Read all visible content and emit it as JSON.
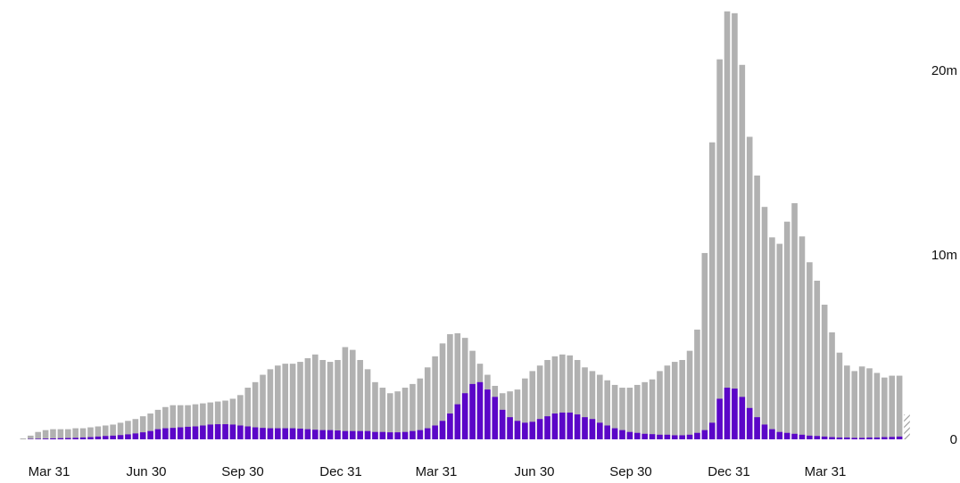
{
  "chart_data": {
    "type": "bar",
    "title": "",
    "xlabel": "",
    "ylabel": "",
    "ylim": [
      0,
      23
    ],
    "unit_scale": "millions",
    "x_tick_labels": [
      "Mar 31",
      "Jun 30",
      "Sep 30",
      "Dec 31",
      "Mar 31",
      "Jun 30",
      "Sep 30",
      "Dec 31",
      "Mar 31"
    ],
    "y_tick_labels": [
      {
        "value": 0,
        "label": "0"
      },
      {
        "value": 10,
        "label": "10m"
      },
      {
        "value": 20,
        "label": "20m"
      }
    ],
    "grid": false,
    "y_axis_position": "right",
    "colors": {
      "total": "#b1b1b1",
      "highlight": "#5b06c8",
      "partial_hatch": "#9a9a9a"
    },
    "series": [
      {
        "key": "total",
        "values": [
          0.0,
          0.05,
          0.2,
          0.4,
          0.5,
          0.55,
          0.55,
          0.55,
          0.6,
          0.6,
          0.65,
          0.7,
          0.75,
          0.8,
          0.9,
          1.0,
          1.1,
          1.25,
          1.4,
          1.6,
          1.75,
          1.85,
          1.85,
          1.85,
          1.9,
          1.95,
          2.0,
          2.05,
          2.1,
          2.2,
          2.4,
          2.8,
          3.1,
          3.5,
          3.8,
          4.0,
          4.1,
          4.1,
          4.2,
          4.4,
          4.6,
          4.3,
          4.2,
          4.3,
          5.0,
          4.85,
          4.3,
          3.8,
          3.1,
          2.8,
          2.5,
          2.6,
          2.8,
          3.0,
          3.3,
          3.9,
          4.5,
          5.2,
          5.7,
          5.75,
          5.5,
          4.8,
          4.1,
          3.5,
          2.9,
          2.5,
          2.6,
          2.7,
          3.3,
          3.7,
          4.0,
          4.3,
          4.5,
          4.6,
          4.55,
          4.3,
          3.9,
          3.7,
          3.5,
          3.2,
          2.95,
          2.8,
          2.8,
          2.95,
          3.1,
          3.25,
          3.7,
          4.0,
          4.2,
          4.3,
          4.8,
          5.95,
          10.1,
          16.1,
          20.6,
          23.2,
          23.1,
          20.3,
          16.4,
          14.3,
          12.6,
          10.95,
          10.6,
          11.8,
          12.8,
          11.0,
          9.6,
          8.6,
          7.3,
          5.8,
          4.7,
          4.0,
          3.7,
          3.95,
          3.85,
          3.6,
          3.35,
          3.45,
          3.45
        ]
      },
      {
        "key": "highlight",
        "values": [
          0.0,
          0.0,
          0.02,
          0.03,
          0.04,
          0.05,
          0.06,
          0.07,
          0.08,
          0.1,
          0.12,
          0.15,
          0.18,
          0.2,
          0.23,
          0.27,
          0.32,
          0.38,
          0.45,
          0.55,
          0.6,
          0.62,
          0.65,
          0.68,
          0.7,
          0.75,
          0.8,
          0.82,
          0.82,
          0.8,
          0.75,
          0.7,
          0.65,
          0.62,
          0.6,
          0.6,
          0.6,
          0.6,
          0.58,
          0.55,
          0.52,
          0.5,
          0.5,
          0.48,
          0.45,
          0.45,
          0.45,
          0.45,
          0.4,
          0.4,
          0.38,
          0.38,
          0.4,
          0.45,
          0.5,
          0.6,
          0.75,
          1.0,
          1.4,
          1.9,
          2.5,
          3.0,
          3.1,
          2.7,
          2.3,
          1.6,
          1.2,
          1.0,
          0.9,
          0.95,
          1.1,
          1.25,
          1.4,
          1.45,
          1.45,
          1.35,
          1.2,
          1.1,
          0.9,
          0.75,
          0.6,
          0.5,
          0.4,
          0.35,
          0.3,
          0.28,
          0.25,
          0.25,
          0.22,
          0.22,
          0.25,
          0.35,
          0.5,
          0.9,
          2.2,
          2.8,
          2.75,
          2.3,
          1.7,
          1.2,
          0.8,
          0.55,
          0.4,
          0.35,
          0.3,
          0.25,
          0.2,
          0.18,
          0.15,
          0.12,
          0.1,
          0.1,
          0.08,
          0.08,
          0.1,
          0.1,
          0.12,
          0.13,
          0.15
        ]
      }
    ],
    "partial_last_bar": {
      "value": 1.35,
      "style": "hatched"
    }
  }
}
